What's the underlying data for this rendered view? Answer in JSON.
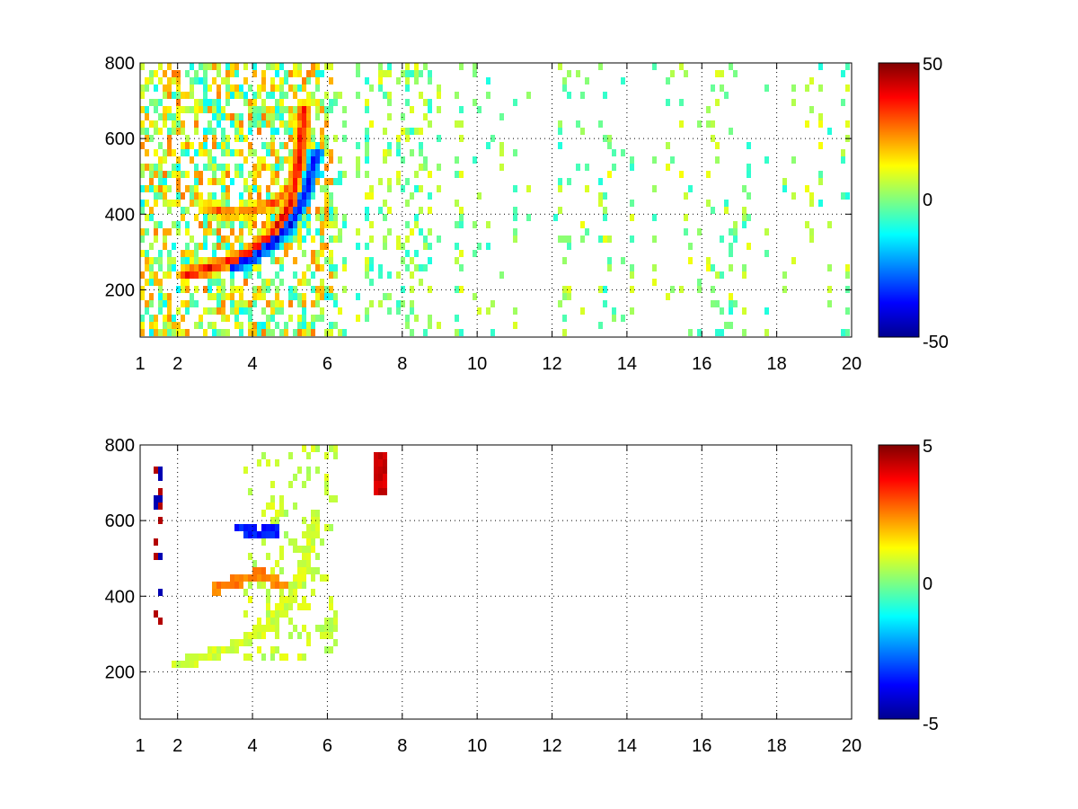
{
  "chart_data": [
    {
      "type": "heatmap",
      "title": "",
      "xlabel": "",
      "ylabel": "",
      "xlim": [
        1,
        20
      ],
      "ylim": [
        75,
        800
      ],
      "x_ticks": [
        "1",
        "2",
        "4",
        "6",
        "8",
        "10",
        "12",
        "14",
        "16",
        "18",
        "20"
      ],
      "y_ticks": [
        "200",
        "400",
        "600",
        "800"
      ],
      "grid": true,
      "colormap": "jet",
      "clim": [
        -50,
        50
      ],
      "colorbar_ticks": [
        "50",
        "0",
        "-50"
      ],
      "features": {
        "positive_arc": {
          "x": [
            2.2,
            2.6,
            3.0,
            3.5,
            4.0,
            4.5,
            5.0,
            5.2,
            5.4
          ],
          "y": [
            240,
            250,
            262,
            280,
            305,
            345,
            420,
            520,
            680
          ],
          "value": 40
        },
        "negative_arc": {
          "x": [
            3.5,
            4.0,
            4.5,
            5.0,
            5.4,
            5.7
          ],
          "y": [
            260,
            285,
            320,
            370,
            450,
            560
          ],
          "value": -40
        },
        "upper_positive_band": {
          "x": [
            2.8,
            3.4,
            4.0,
            4.6,
            5.0
          ],
          "y": [
            420,
            400,
            410,
            430,
            470
          ],
          "value": 30
        }
      }
    },
    {
      "type": "heatmap",
      "title": "",
      "xlabel": "",
      "ylabel": "",
      "xlim": [
        1,
        20
      ],
      "ylim": [
        75,
        800
      ],
      "x_ticks": [
        "1",
        "2",
        "4",
        "6",
        "8",
        "10",
        "12",
        "14",
        "16",
        "18",
        "20"
      ],
      "y_ticks": [
        "200",
        "400",
        "600",
        "800"
      ],
      "grid": true,
      "colormap": "jet",
      "clim": [
        -5,
        5
      ],
      "colorbar_ticks": [
        "5",
        "0",
        "-5"
      ],
      "features": {
        "main_arc": {
          "x": [
            2.0,
            2.6,
            3.2,
            3.8,
            4.4,
            5.0,
            5.4,
            5.7
          ],
          "y": [
            220,
            235,
            255,
            280,
            320,
            390,
            480,
            620
          ],
          "value": 0.8
        },
        "warm_cluster": {
          "x": [
            3.0,
            3.6,
            4.2,
            4.8
          ],
          "y": [
            420,
            440,
            460,
            430
          ],
          "value": 2.5
        },
        "cold_spots": {
          "x": [
            3.7,
            4.2,
            4.6
          ],
          "y": [
            580,
            565,
            575
          ],
          "value": -3.5
        },
        "red_marks": {
          "x": [
            7.4,
            7.4,
            7.4
          ],
          "y": [
            770,
            710,
            680
          ],
          "value": 4.2
        }
      }
    }
  ]
}
